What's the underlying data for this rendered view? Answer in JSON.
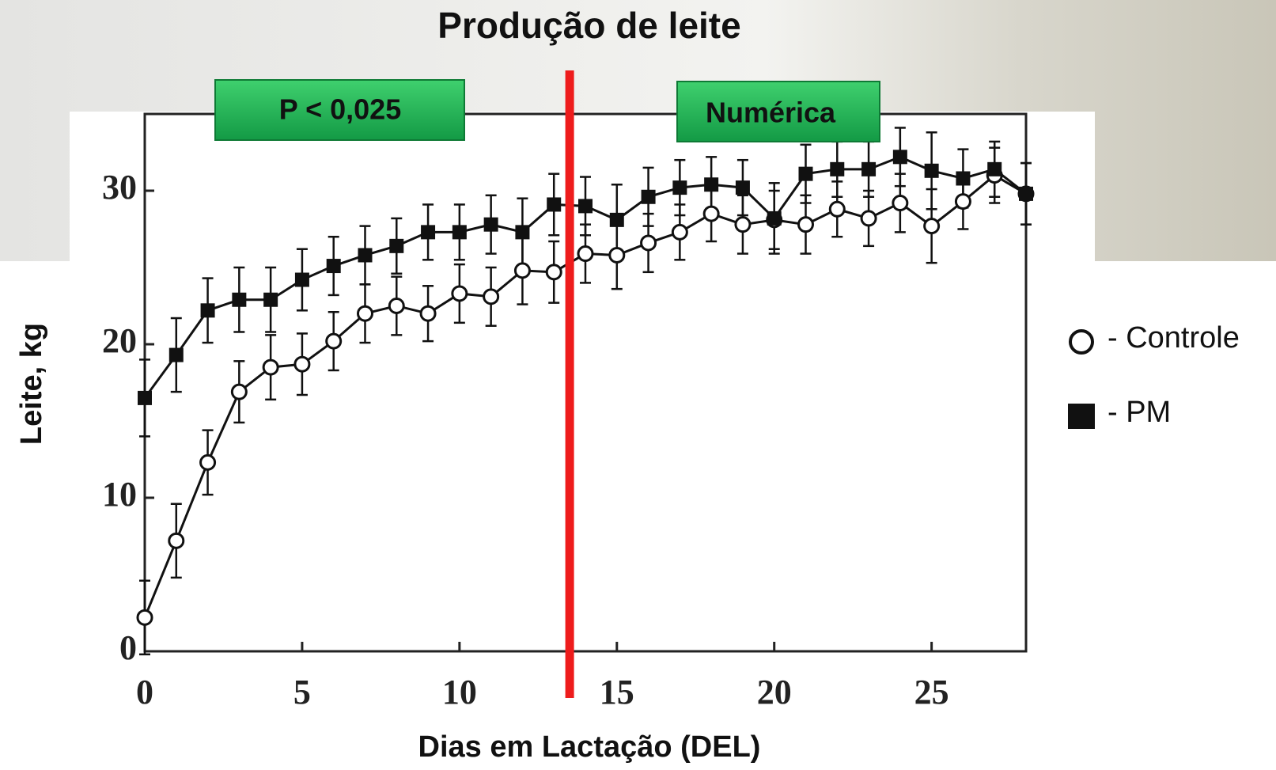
{
  "chart_data": {
    "type": "line",
    "title": "Produção de leite",
    "x_label": "Dias em Lactação (DEL)",
    "y_label": "Leite, kg",
    "x": [
      0,
      1,
      2,
      3,
      4,
      5,
      6,
      7,
      8,
      9,
      10,
      11,
      12,
      13,
      14,
      15,
      16,
      17,
      18,
      19,
      20,
      21,
      22,
      23,
      24,
      25,
      26,
      27,
      28
    ],
    "xlim": [
      0,
      28
    ],
    "ylim": [
      0,
      35
    ],
    "xticks": [
      0,
      5,
      10,
      15,
      20,
      25
    ],
    "yticks": [
      0,
      10,
      20,
      30
    ],
    "series": [
      {
        "name": "- Controle",
        "marker": "circle",
        "color": "#111111",
        "values": [
          2.2,
          7.2,
          12.3,
          16.9,
          18.5,
          18.7,
          20.2,
          22.0,
          22.5,
          22.0,
          23.3,
          23.1,
          24.8,
          24.7,
          25.9,
          25.8,
          26.6,
          27.3,
          28.5,
          27.8,
          28.1,
          27.8,
          28.8,
          28.2,
          29.2,
          27.7,
          29.3,
          31.0,
          29.8
        ],
        "errors": [
          2.4,
          2.4,
          2.1,
          2.0,
          2.1,
          2.0,
          1.9,
          1.9,
          1.9,
          1.8,
          1.9,
          1.9,
          2.2,
          2.0,
          1.9,
          2.2,
          1.9,
          1.8,
          1.8,
          1.9,
          1.9,
          1.9,
          1.8,
          1.8,
          1.9,
          2.4,
          1.8,
          1.8,
          2.0
        ]
      },
      {
        "name": "- PM",
        "marker": "square",
        "color": "#111111",
        "values": [
          16.5,
          19.3,
          22.2,
          22.9,
          22.9,
          24.2,
          25.1,
          25.8,
          26.4,
          27.3,
          27.3,
          27.8,
          27.3,
          29.1,
          29.0,
          28.1,
          29.6,
          30.2,
          30.4,
          30.2,
          28.2,
          31.1,
          31.4,
          31.4,
          32.2,
          31.3,
          30.8,
          31.4,
          29.8
        ],
        "errors": [
          2.5,
          2.4,
          2.1,
          2.1,
          2.1,
          2.0,
          1.9,
          1.9,
          1.8,
          1.8,
          1.8,
          1.9,
          2.2,
          2.0,
          1.9,
          2.3,
          1.9,
          1.8,
          1.8,
          1.8,
          2.3,
          1.9,
          1.8,
          1.8,
          1.9,
          2.5,
          1.9,
          1.8,
          2.0
        ]
      }
    ],
    "reference_line": {
      "x": 13.5,
      "color": "#ee1c1c"
    },
    "annotations": [
      "P < 0,025",
      "Numérica"
    ]
  }
}
